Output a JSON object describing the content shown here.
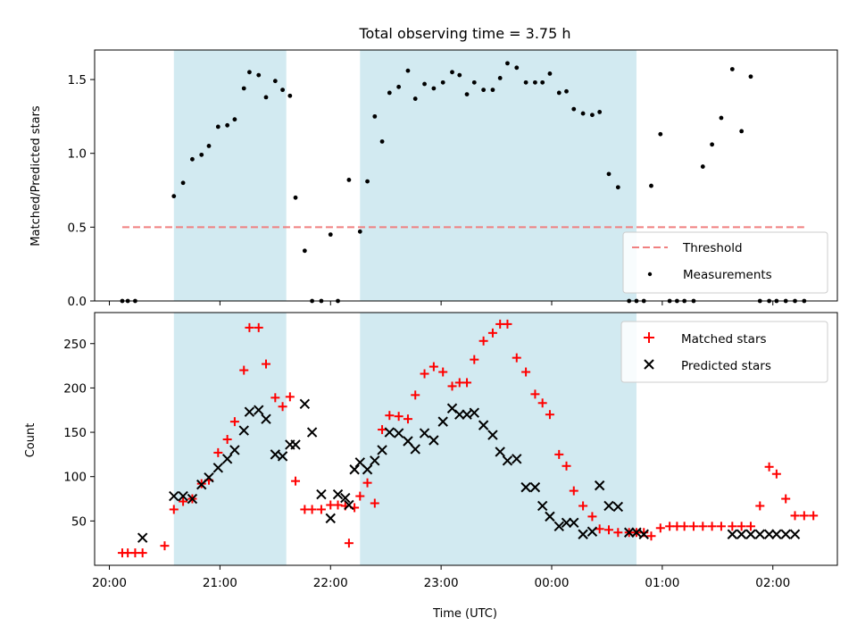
{
  "figure": {
    "title": "Total observing time = 3.75 h",
    "xlabel": "Time (UTC)",
    "x_ticks": [
      "20:00",
      "21:00",
      "22:00",
      "23:00",
      "00:00",
      "01:00",
      "02:00"
    ]
  },
  "colors": {
    "shade": "#add8e6",
    "threshold": "#f08080",
    "matched": "#ff0000",
    "predicted": "#000000",
    "points": "#000000"
  },
  "chart_data": [
    {
      "type": "scatter",
      "ylabel": "Matched/Predicted stars",
      "ylim": [
        0,
        1.7
      ],
      "yticks": [
        "0.0",
        "0.5",
        "1.0",
        "1.5"
      ],
      "xlim": [
        "19:52",
        "02:35"
      ],
      "shaded_intervals": [
        [
          "20:35",
          "21:36"
        ],
        [
          "22:16",
          "00:46"
        ]
      ],
      "threshold": {
        "name": "Threshold",
        "value": 0.5,
        "x_range": [
          "20:07",
          "02:17"
        ]
      },
      "legend": {
        "placement": "lower right",
        "entries": [
          "Threshold",
          "Measurements"
        ]
      },
      "series": [
        {
          "name": "Measurements",
          "x": [
            "20:07",
            "20:10",
            "20:14",
            "20:35",
            "20:40",
            "20:45",
            "20:50",
            "20:54",
            "20:59",
            "21:04",
            "21:08",
            "21:13",
            "21:16",
            "21:21",
            "21:25",
            "21:30",
            "21:34",
            "21:38",
            "21:41",
            "21:46",
            "21:50",
            "21:55",
            "22:00",
            "22:04",
            "22:10",
            "22:16",
            "22:20",
            "22:24",
            "22:28",
            "22:32",
            "22:37",
            "22:42",
            "22:46",
            "22:51",
            "22:56",
            "23:01",
            "23:06",
            "23:10",
            "23:14",
            "23:18",
            "23:23",
            "23:28",
            "23:32",
            "23:36",
            "23:41",
            "23:46",
            "23:51",
            "23:55",
            "23:59",
            "00:04",
            "00:08",
            "00:12",
            "00:17",
            "00:22",
            "00:26",
            "00:31",
            "00:36",
            "00:42",
            "00:46",
            "00:50",
            "00:54",
            "00:59",
            "01:04",
            "01:08",
            "01:12",
            "01:17",
            "01:22",
            "01:27",
            "01:32",
            "01:38",
            "01:43",
            "01:48",
            "01:53",
            "01:58",
            "02:02",
            "02:07",
            "02:12",
            "02:17"
          ],
          "y": [
            0,
            0,
            0,
            0.71,
            0.8,
            0.96,
            0.99,
            1.05,
            1.18,
            1.19,
            1.23,
            1.44,
            1.55,
            1.53,
            1.38,
            1.49,
            1.43,
            1.39,
            0.7,
            0.34,
            0,
            0,
            0.45,
            0,
            0.82,
            0.47,
            0.81,
            1.25,
            1.08,
            1.41,
            1.45,
            1.56,
            1.37,
            1.47,
            1.44,
            1.48,
            1.55,
            1.53,
            1.4,
            1.48,
            1.43,
            1.43,
            1.51,
            1.61,
            1.58,
            1.48,
            1.48,
            1.48,
            1.54,
            1.41,
            1.42,
            1.3,
            1.27,
            1.26,
            1.28,
            0.86,
            0.77,
            0,
            0,
            0,
            0.78,
            1.13,
            0,
            0,
            0,
            0,
            0.91,
            1.06,
            1.24,
            1.57,
            1.15,
            1.52,
            0,
            0,
            0,
            0,
            0,
            0
          ]
        }
      ]
    },
    {
      "type": "scatter",
      "ylabel": "Count",
      "ylim": [
        0,
        285
      ],
      "yticks": [
        "50",
        "100",
        "150",
        "200",
        "250"
      ],
      "xlim": [
        "19:52",
        "02:35"
      ],
      "shaded_intervals": [
        [
          "20:35",
          "21:36"
        ],
        [
          "22:16",
          "00:46"
        ]
      ],
      "legend": {
        "placement": "upper right",
        "entries": [
          "Matched stars",
          "Predicted stars"
        ]
      },
      "series": [
        {
          "name": "Matched stars",
          "x": [
            "20:07",
            "20:10",
            "20:14",
            "20:18",
            "20:30",
            "20:35",
            "20:40",
            "20:45",
            "20:50",
            "20:54",
            "20:59",
            "21:04",
            "21:08",
            "21:13",
            "21:16",
            "21:21",
            "21:25",
            "21:30",
            "21:34",
            "21:38",
            "21:41",
            "21:46",
            "21:50",
            "21:55",
            "22:00",
            "22:04",
            "22:08",
            "22:10",
            "22:13",
            "22:16",
            "22:20",
            "22:24",
            "22:28",
            "22:32",
            "22:37",
            "22:42",
            "22:46",
            "22:51",
            "22:56",
            "23:01",
            "23:06",
            "23:10",
            "23:14",
            "23:18",
            "23:23",
            "23:28",
            "23:32",
            "23:36",
            "23:41",
            "23:46",
            "23:51",
            "23:55",
            "23:59",
            "00:04",
            "00:08",
            "00:12",
            "00:17",
            "00:22",
            "00:26",
            "00:31",
            "00:36",
            "00:42",
            "00:46",
            "00:50",
            "00:54",
            "00:59",
            "01:04",
            "01:08",
            "01:12",
            "01:17",
            "01:22",
            "01:27",
            "01:32",
            "01:38",
            "01:43",
            "01:48",
            "01:53",
            "01:58",
            "02:02",
            "02:07",
            "02:12",
            "02:17",
            "02:22"
          ],
          "y": [
            14,
            14,
            14,
            14,
            22,
            63,
            72,
            75,
            92,
            96,
            127,
            142,
            162,
            220,
            268,
            268,
            227,
            189,
            179,
            190,
            95,
            63,
            63,
            63,
            68,
            68,
            67,
            25,
            65,
            78,
            93,
            70,
            153,
            169,
            168,
            165,
            192,
            216,
            224,
            218,
            202,
            206,
            206,
            232,
            253,
            262,
            272,
            272,
            234,
            218,
            193,
            183,
            170,
            125,
            112,
            84,
            67,
            55,
            41,
            40,
            37,
            37,
            37,
            37,
            33,
            42,
            44,
            44,
            44,
            44,
            44,
            44,
            44,
            44,
            44,
            44,
            67,
            111,
            103,
            75,
            56,
            56,
            56
          ]
        },
        {
          "name": "Predicted stars",
          "x": [
            "20:18",
            "20:35",
            "20:40",
            "20:45",
            "20:50",
            "20:54",
            "20:59",
            "21:04",
            "21:08",
            "21:13",
            "21:16",
            "21:21",
            "21:25",
            "21:30",
            "21:34",
            "21:38",
            "21:41",
            "21:46",
            "21:50",
            "21:55",
            "22:00",
            "22:04",
            "22:08",
            "22:10",
            "22:13",
            "22:16",
            "22:20",
            "22:24",
            "22:28",
            "22:32",
            "22:37",
            "22:42",
            "22:46",
            "22:51",
            "22:56",
            "23:01",
            "23:06",
            "23:10",
            "23:14",
            "23:18",
            "23:23",
            "23:28",
            "23:32",
            "23:36",
            "23:41",
            "23:46",
            "23:51",
            "23:55",
            "23:59",
            "00:04",
            "00:08",
            "00:12",
            "00:17",
            "00:22",
            "00:26",
            "00:31",
            "00:36",
            "00:42",
            "00:46",
            "00:50",
            "01:38",
            "01:43",
            "01:48",
            "01:53",
            "01:58",
            "02:02",
            "02:07",
            "02:12"
          ],
          "y": [
            31,
            78,
            78,
            75,
            91,
            99,
            110,
            120,
            130,
            152,
            173,
            175,
            165,
            125,
            123,
            136,
            136,
            182,
            150,
            80,
            53,
            80,
            76,
            68,
            108,
            116,
            108,
            118,
            130,
            150,
            149,
            140,
            131,
            149,
            141,
            162,
            177,
            170,
            170,
            172,
            158,
            147,
            128,
            118,
            120,
            88,
            88,
            67,
            55,
            44,
            48,
            48,
            35,
            38,
            90,
            67,
            66,
            37,
            37,
            35,
            35,
            35,
            35,
            35,
            35,
            35,
            35,
            35
          ]
        }
      ]
    }
  ]
}
